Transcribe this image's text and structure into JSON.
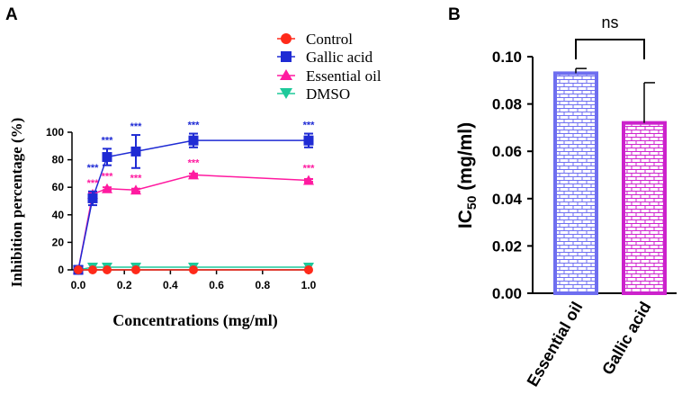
{
  "chart_data": [
    {
      "panel_label": "A",
      "type": "line",
      "xlabel": "Concentrations (mg/ml)",
      "ylabel": "Inhibition percentage (%)",
      "xlim": [
        0,
        1.0
      ],
      "ylim": [
        0,
        100
      ],
      "xticks": [
        "0.0",
        "0.2",
        "0.4",
        "0.6",
        "0.8",
        "1.0"
      ],
      "yticks": [
        "0",
        "20",
        "40",
        "60",
        "80",
        "100"
      ],
      "x": [
        0,
        0.0625,
        0.125,
        0.25,
        0.5,
        1.0
      ],
      "legend": [
        "Control",
        "Gallic acid",
        "Essential oil",
        "DMSO"
      ],
      "series": [
        {
          "name": "Control",
          "color": "#ff2a1a",
          "marker": "circle",
          "values": [
            0,
            0,
            0,
            0,
            0,
            0
          ],
          "errors": [
            0,
            0,
            0,
            0,
            0,
            0
          ]
        },
        {
          "name": "Gallic acid",
          "color": "#1f2bd4",
          "marker": "square",
          "values": [
            0,
            52,
            82,
            86,
            94,
            94
          ],
          "errors": [
            0,
            5,
            6,
            12,
            5,
            5
          ]
        },
        {
          "name": "Essential oil",
          "color": "#ff1aa0",
          "marker": "triangle-up",
          "values": [
            0,
            55,
            59,
            58,
            69,
            65
          ],
          "errors": [
            0,
            1,
            1,
            1,
            1,
            1
          ]
        },
        {
          "name": "DMSO",
          "color": "#1ec99a",
          "marker": "triangle-down",
          "values": [
            0,
            2,
            2,
            2,
            2,
            2
          ],
          "errors": [
            0,
            0,
            0,
            0,
            0,
            0
          ]
        }
      ],
      "annotations": {
        "Gallic acid": [
          "",
          "***",
          "***",
          "***",
          "***",
          "***"
        ],
        "Essential oil": [
          "",
          "***",
          "***",
          "***",
          "***",
          "***"
        ]
      }
    },
    {
      "panel_label": "B",
      "type": "bar",
      "categories": [
        "Essential oil",
        "Gallic acid"
      ],
      "values": [
        0.093,
        0.072
      ],
      "errors": [
        0.002,
        0.017
      ],
      "colors": [
        "#6e6ef0",
        "#cc22cc"
      ],
      "ylabel": "IC50 (mg/ml)",
      "ylabel_main": "IC",
      "ylabel_sub": "50",
      "ylabel_tail": " (mg/ml)",
      "ylim": [
        0,
        0.1
      ],
      "yticks": [
        "0.00",
        "0.02",
        "0.04",
        "0.06",
        "0.08",
        "0.10"
      ],
      "significance": "ns"
    }
  ]
}
